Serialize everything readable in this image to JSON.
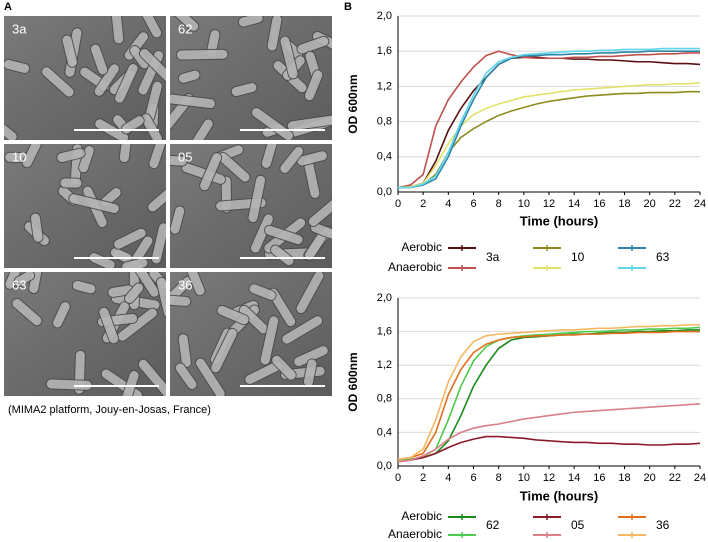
{
  "panel_a": {
    "label": "A",
    "images": [
      "3a",
      "62",
      "10",
      "05",
      "63",
      "36"
    ],
    "caption": "(MIMA2 platform, Jouy-en-Josas, France)"
  },
  "panel_b": {
    "label": "B"
  },
  "chart_data": [
    {
      "type": "line",
      "y_label": "OD 600nm",
      "x_label": "Time (hours)",
      "x": [
        0,
        1,
        2,
        3,
        4,
        5,
        6,
        7,
        8,
        9,
        10,
        11,
        12,
        13,
        14,
        15,
        16,
        17,
        18,
        19,
        20,
        21,
        22,
        23,
        24
      ],
      "xlim": [
        0,
        24
      ],
      "xticks": [
        0,
        2,
        4,
        6,
        8,
        10,
        12,
        14,
        16,
        18,
        20,
        22,
        24
      ],
      "ylim": [
        0,
        2
      ],
      "yticks": [
        {
          "value": 0,
          "label": "0,0"
        },
        {
          "value": 0.4,
          "label": "0,4"
        },
        {
          "value": 0.8,
          "label": "0,8"
        },
        {
          "value": 1.2,
          "label": "1,2"
        },
        {
          "value": 1.6,
          "label": "1,6"
        },
        {
          "value": 2,
          "label": "2,0"
        }
      ],
      "grid": true,
      "conditions": [
        "Aerobic",
        "Anaerobic"
      ],
      "series": [
        {
          "name": "3a",
          "lines": [
            {
              "color": "#5a0f12",
              "values": [
                0.05,
                0.06,
                0.1,
                0.35,
                0.7,
                0.95,
                1.15,
                1.3,
                1.45,
                1.52,
                1.53,
                1.53,
                1.52,
                1.52,
                1.51,
                1.51,
                1.5,
                1.5,
                1.49,
                1.48,
                1.48,
                1.47,
                1.46,
                1.46,
                1.45
              ]
            },
            {
              "color": "#c0504d",
              "values": [
                0.05,
                0.08,
                0.2,
                0.75,
                1.05,
                1.25,
                1.42,
                1.55,
                1.6,
                1.56,
                1.53,
                1.52,
                1.52,
                1.52,
                1.53,
                1.53,
                1.54,
                1.54,
                1.55,
                1.56,
                1.56,
                1.57,
                1.57,
                1.58,
                1.58
              ]
            }
          ]
        },
        {
          "name": "10",
          "lines": [
            {
              "color": "#8c8c1e",
              "values": [
                0.05,
                0.05,
                0.08,
                0.2,
                0.45,
                0.62,
                0.72,
                0.8,
                0.87,
                0.92,
                0.96,
                1.0,
                1.03,
                1.05,
                1.07,
                1.09,
                1.1,
                1.11,
                1.12,
                1.12,
                1.13,
                1.13,
                1.13,
                1.14,
                1.14
              ]
            },
            {
              "color": "#e2e26a",
              "values": [
                0.05,
                0.06,
                0.1,
                0.3,
                0.55,
                0.75,
                0.88,
                0.95,
                1.0,
                1.04,
                1.08,
                1.1,
                1.12,
                1.14,
                1.16,
                1.17,
                1.18,
                1.19,
                1.2,
                1.21,
                1.22,
                1.22,
                1.23,
                1.23,
                1.24
              ]
            }
          ]
        },
        {
          "name": "63",
          "lines": [
            {
              "color": "#2e86ab",
              "values": [
                0.05,
                0.05,
                0.08,
                0.15,
                0.4,
                0.75,
                1.05,
                1.3,
                1.45,
                1.52,
                1.55,
                1.55,
                1.56,
                1.56,
                1.57,
                1.57,
                1.58,
                1.58,
                1.59,
                1.59,
                1.6,
                1.6,
                1.6,
                1.6,
                1.6
              ]
            },
            {
              "color": "#5fd6ea",
              "values": [
                0.05,
                0.05,
                0.09,
                0.18,
                0.45,
                0.8,
                1.1,
                1.35,
                1.48,
                1.53,
                1.56,
                1.57,
                1.58,
                1.59,
                1.6,
                1.6,
                1.61,
                1.61,
                1.62,
                1.62,
                1.62,
                1.63,
                1.63,
                1.63,
                1.63
              ]
            }
          ]
        }
      ]
    },
    {
      "type": "line",
      "y_label": "OD 600nm",
      "x_label": "Time (hours)",
      "x": [
        0,
        1,
        2,
        3,
        4,
        5,
        6,
        7,
        8,
        9,
        10,
        11,
        12,
        13,
        14,
        15,
        16,
        17,
        18,
        19,
        20,
        21,
        22,
        23,
        24
      ],
      "xlim": [
        0,
        24
      ],
      "xticks": [
        0,
        2,
        4,
        6,
        8,
        10,
        12,
        14,
        16,
        18,
        20,
        22,
        24
      ],
      "ylim": [
        0,
        2
      ],
      "yticks": [
        {
          "value": 0,
          "label": "0,0"
        },
        {
          "value": 0.4,
          "label": "0,4"
        },
        {
          "value": 0.8,
          "label": "0,8"
        },
        {
          "value": 1.2,
          "label": "1,2"
        },
        {
          "value": 1.6,
          "label": "1,6"
        },
        {
          "value": 2,
          "label": "2,0"
        }
      ],
      "grid": true,
      "conditions": [
        "Aerobic",
        "Anaerobic"
      ],
      "series": [
        {
          "name": "62",
          "lines": [
            {
              "color": "#1a8a1a",
              "values": [
                0.08,
                0.08,
                0.1,
                0.15,
                0.3,
                0.6,
                0.95,
                1.2,
                1.4,
                1.5,
                1.53,
                1.54,
                1.55,
                1.56,
                1.57,
                1.57,
                1.58,
                1.59,
                1.59,
                1.6,
                1.6,
                1.61,
                1.61,
                1.62,
                1.62
              ]
            },
            {
              "color": "#4dcc4d",
              "values": [
                0.08,
                0.08,
                0.11,
                0.2,
                0.55,
                0.95,
                1.25,
                1.42,
                1.5,
                1.53,
                1.55,
                1.56,
                1.57,
                1.58,
                1.59,
                1.6,
                1.6,
                1.61,
                1.62,
                1.62,
                1.63,
                1.63,
                1.64,
                1.64,
                1.65
              ]
            }
          ]
        },
        {
          "name": "05",
          "lines": [
            {
              "color": "#8b1a2a",
              "values": [
                0.05,
                0.07,
                0.1,
                0.15,
                0.22,
                0.28,
                0.32,
                0.35,
                0.35,
                0.34,
                0.33,
                0.31,
                0.3,
                0.29,
                0.28,
                0.28,
                0.27,
                0.27,
                0.26,
                0.26,
                0.25,
                0.25,
                0.26,
                0.26,
                0.27
              ]
            },
            {
              "color": "#d9808a",
              "values": [
                0.05,
                0.07,
                0.12,
                0.2,
                0.32,
                0.4,
                0.45,
                0.48,
                0.5,
                0.53,
                0.56,
                0.58,
                0.6,
                0.62,
                0.64,
                0.65,
                0.66,
                0.67,
                0.68,
                0.69,
                0.7,
                0.71,
                0.72,
                0.73,
                0.74
              ]
            }
          ]
        },
        {
          "name": "36",
          "lines": [
            {
              "color": "#e07020",
              "values": [
                0.08,
                0.1,
                0.15,
                0.4,
                0.85,
                1.15,
                1.35,
                1.45,
                1.5,
                1.53,
                1.54,
                1.55,
                1.55,
                1.56,
                1.56,
                1.57,
                1.57,
                1.58,
                1.58,
                1.59,
                1.59,
                1.59,
                1.6,
                1.6,
                1.6
              ]
            },
            {
              "color": "#f5b860",
              "values": [
                0.08,
                0.1,
                0.2,
                0.55,
                1.0,
                1.3,
                1.48,
                1.55,
                1.57,
                1.58,
                1.59,
                1.6,
                1.61,
                1.62,
                1.62,
                1.63,
                1.64,
                1.64,
                1.65,
                1.66,
                1.66,
                1.67,
                1.67,
                1.68,
                1.68
              ]
            }
          ]
        }
      ]
    }
  ]
}
